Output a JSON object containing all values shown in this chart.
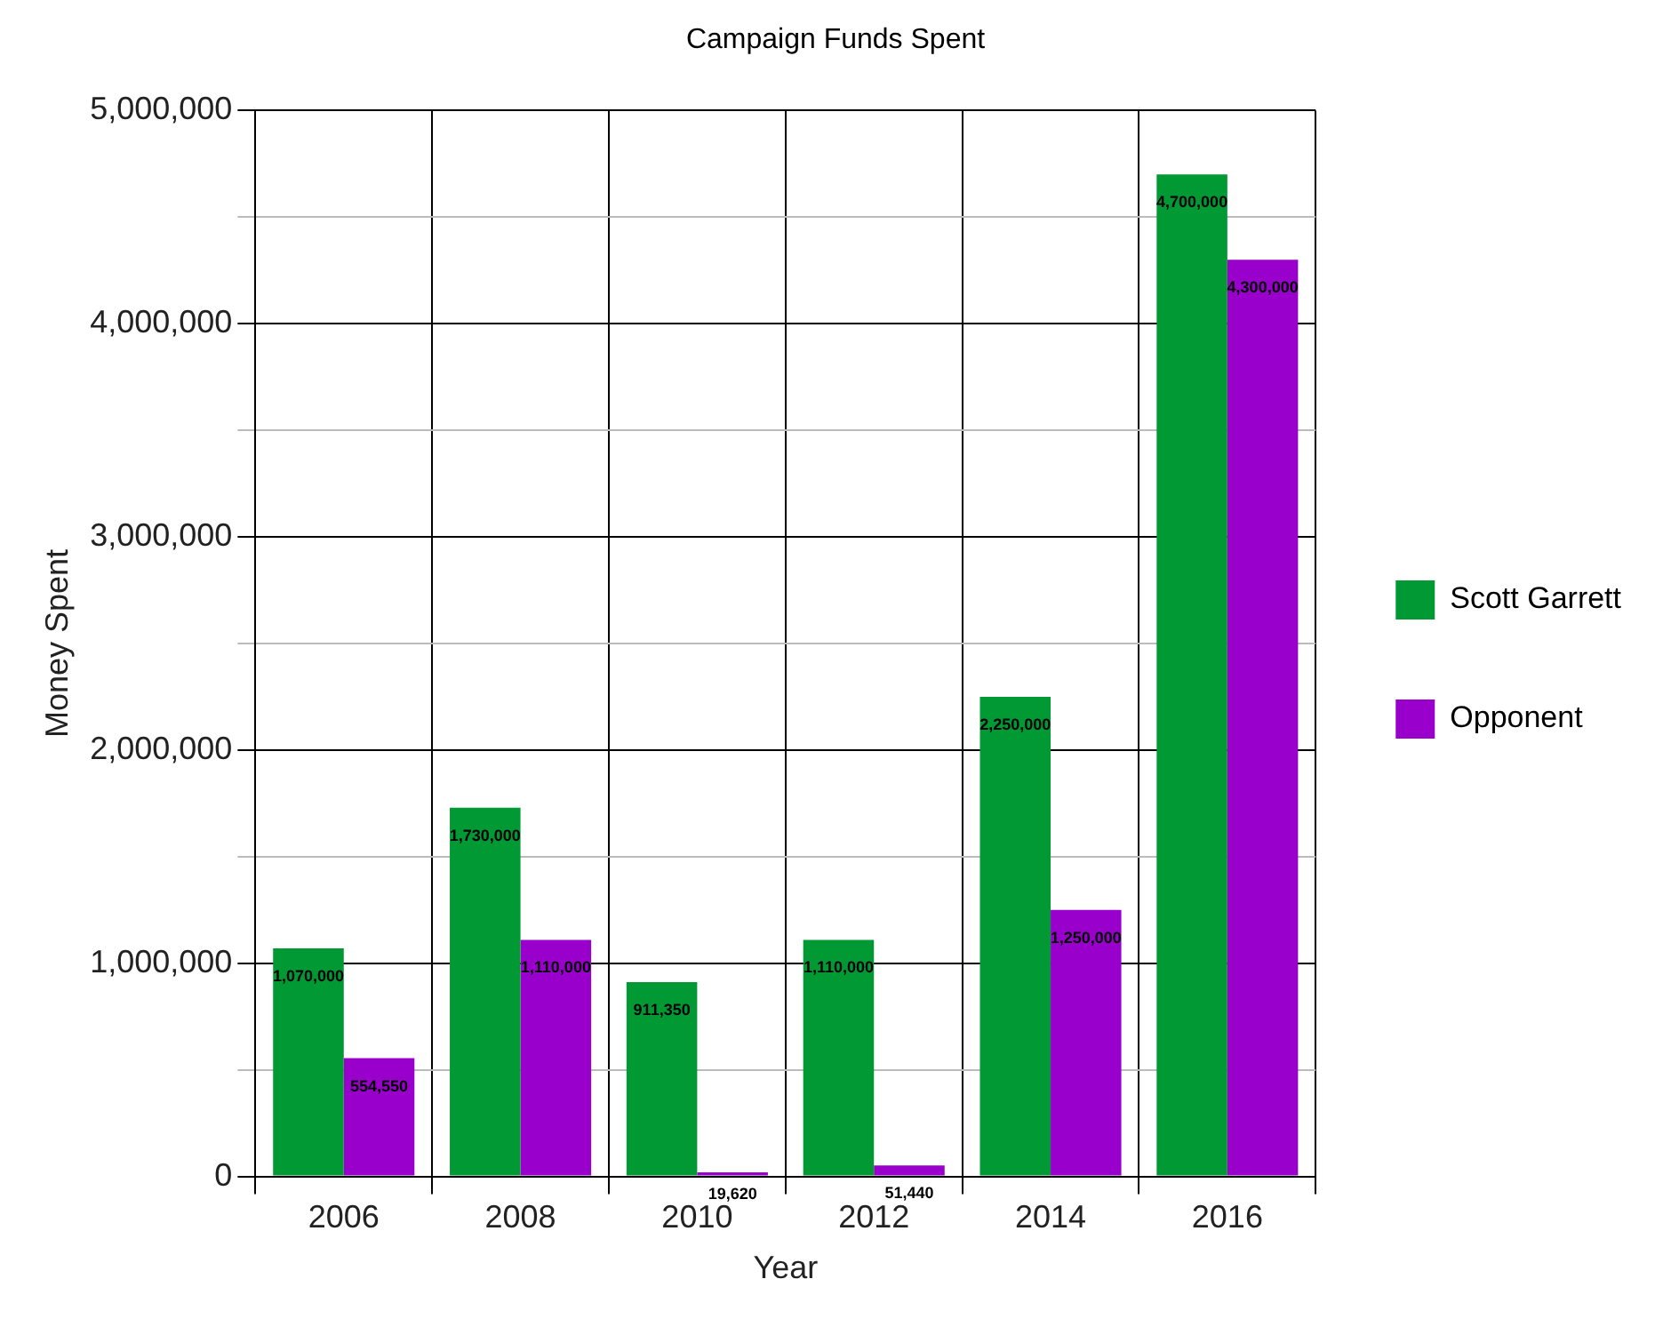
{
  "chart_data": {
    "type": "bar",
    "title": "Campaign Funds Spent",
    "xlabel": "Year",
    "ylabel": "Money Spent",
    "categories": [
      "2006",
      "2008",
      "2010",
      "2012",
      "2014",
      "2016"
    ],
    "series": [
      {
        "name": "Scott Garrett",
        "color": "#009933",
        "values": [
          1070000,
          1730000,
          911350,
          1110000,
          2250000,
          4700000
        ],
        "value_labels": [
          "1,070,000",
          "1,730,000",
          "911,350",
          "1,110,000",
          "2,250,000",
          "4,700,000"
        ]
      },
      {
        "name": "Opponent",
        "color": "#9900cc",
        "values": [
          554550,
          1110000,
          19620,
          51440,
          1250000,
          4300000
        ],
        "value_labels": [
          "554,550",
          "1,110,000",
          "19,620",
          "51,440",
          "1,250,000",
          "4,300,000"
        ]
      }
    ],
    "ylim": [
      0,
      5000000
    ],
    "yticks": [
      0,
      {
        "value": 500000,
        "label": null
      },
      {
        "value": 1000000,
        "label": "1,000,000"
      },
      {
        "value": 1500000,
        "label": null
      },
      {
        "value": 2000000,
        "label": "2,000,000"
      },
      {
        "value": 2500000,
        "label": null
      },
      {
        "value": 3000000,
        "label": "3,000,000"
      },
      {
        "value": 3500000,
        "label": null
      },
      {
        "value": 4000000,
        "label": "4,000,000"
      },
      {
        "value": 4500000,
        "label": null
      },
      {
        "value": 5000000,
        "label": "5,000,000"
      }
    ],
    "grid": true,
    "legend": "right"
  }
}
